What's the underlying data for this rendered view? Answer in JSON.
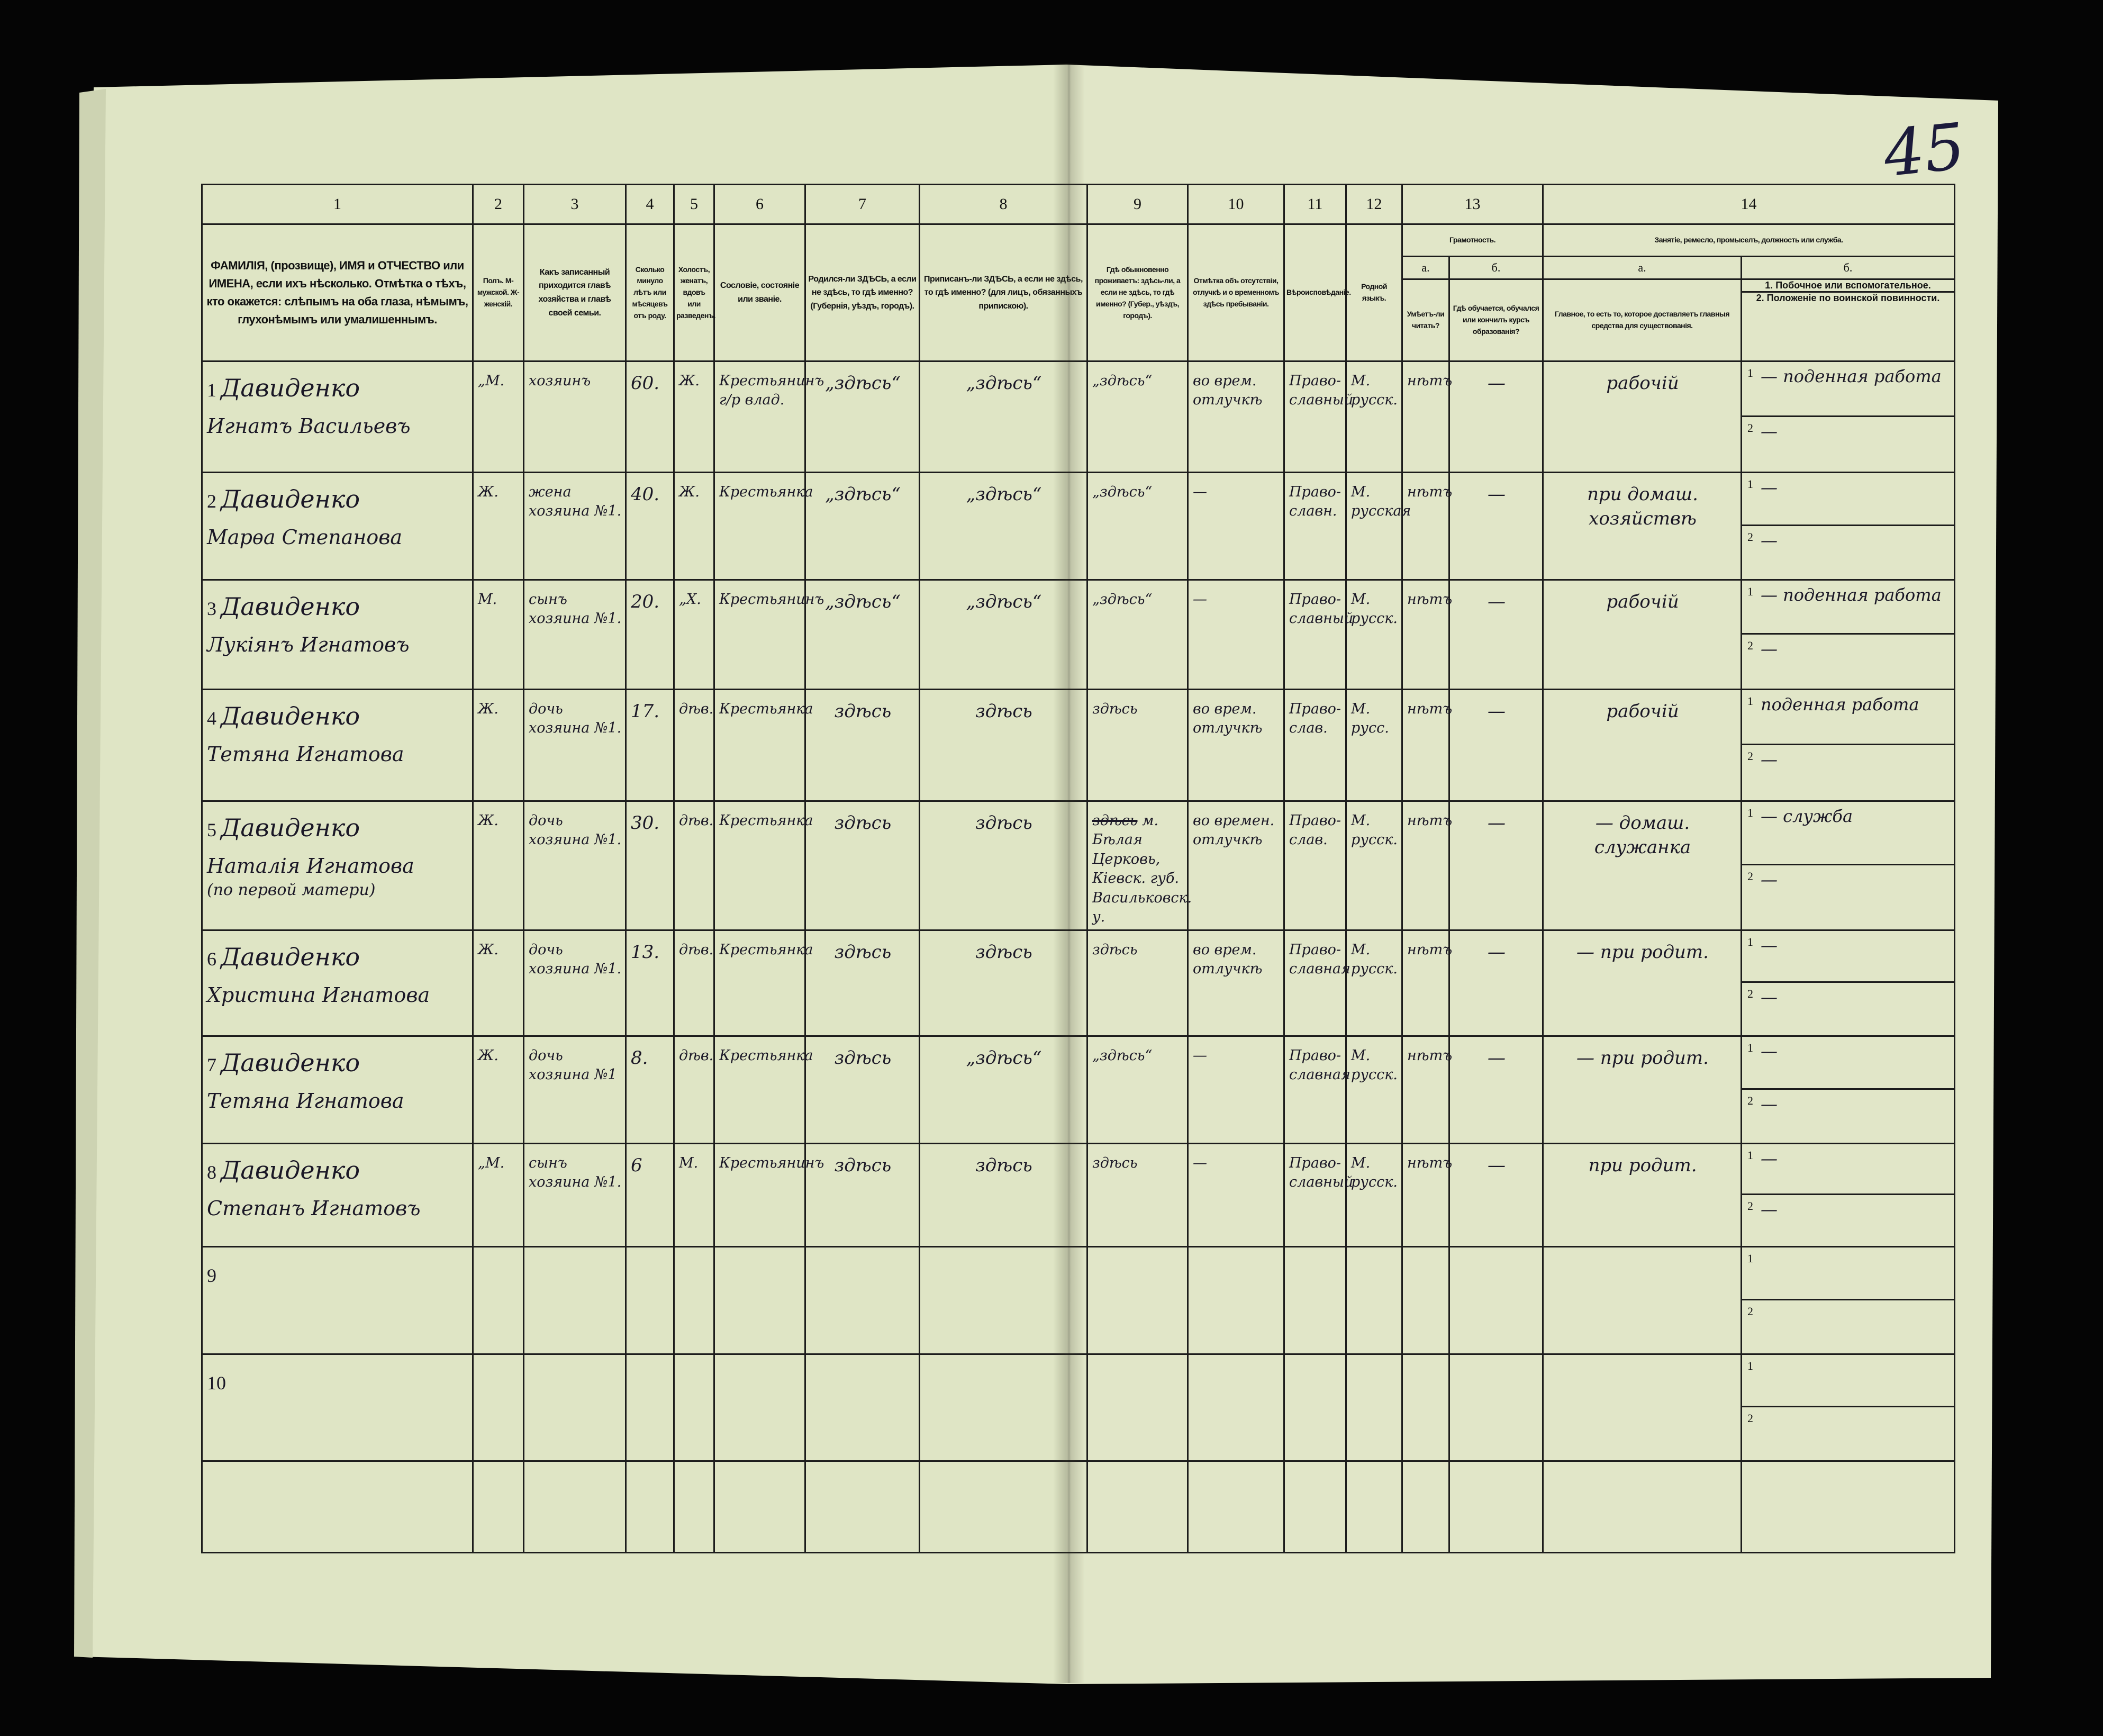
{
  "document": {
    "page_number": "45",
    "colors": {
      "paper": "#dfe5c5",
      "ink": "#1a1726",
      "print": "#111111",
      "background": "#050505"
    }
  },
  "columns": {
    "numbers": [
      "1",
      "2",
      "3",
      "4",
      "5",
      "6",
      "7",
      "8",
      "9",
      "10",
      "11",
      "12",
      "13",
      "14"
    ],
    "c1": "ФАМИЛІЯ, (прозвище), ИМЯ и ОТЧЕСТВО или ИМЕНА, если ихъ нѣсколько. Отмѣтка о тѣхъ, кто окажется: слѣпымъ на оба глаза, нѣмымъ, глухонѣмымъ или умалишеннымъ.",
    "c2": "Полъ. М-мужской. Ж-женскій.",
    "c3": "Какъ записанный приходится главѣ хозяйства и главѣ своей семьи.",
    "c4": "Сколько минуло лѣтъ или мѣсяцевъ отъ роду.",
    "c5": "Холостъ, женатъ, вдовъ или разведенъ.",
    "c6": "Сословіе, состояніе или званіе.",
    "c7": "Родился-ли ЗДѢСЬ, а если не здѣсь, то гдѣ именно? (Губернія, уѣздъ, городъ).",
    "c8": "Приписанъ-ли ЗДѢСЬ, а если не здѣсь, то гдѣ именно? (для лицъ, обязанныхъ припискою).",
    "c9": "Гдѣ обыкновенно проживаетъ: здѣсь-ли, а если не здѣсь, то гдѣ именно? (Губер., уѣздъ, городъ).",
    "c10": "Отмѣтка объ отсутствіи, отлучкѣ и о временномъ здѣсь пребываніи.",
    "c11": "Вѣроисповѣданіе.",
    "c12": "Родной языкъ.",
    "c13": "Грамотность.",
    "c13a_letter": "а.",
    "c13b_letter": "б.",
    "c13a": "Умѣетъ-ли читать?",
    "c13b": "Гдѣ обучается, обучался или кончилъ курсъ образованія?",
    "c14": "Занятіе, ремесло, промыселъ, должность или служба.",
    "c14a_letter": "а.",
    "c14b_letter": "б.",
    "c14a": "Главное, то есть то, которое доставляетъ главныя средства для существованія.",
    "c14b_1": "1. Побочное или вспомогательное.",
    "c14b_2": "2. Положеніе по воинской повинности."
  },
  "rows": [
    {
      "n": "1",
      "surname": "Давиденко",
      "given": "Игнатъ Васильевъ",
      "note": "",
      "sex": "„М.",
      "relation": "хозяинъ",
      "age": "60.",
      "marital": "Ж.",
      "estate": "Крестьянинъ г/р влад.",
      "born": "„здѣсь“",
      "registered": "„здѣсь“",
      "residence": "„здѣсь“",
      "residence_struck": "",
      "absence": "во врем. отлучкѣ",
      "religion": "Право-славный",
      "language": "М. русск.",
      "literate": "нѣтъ",
      "school": "—",
      "main_occupation": "рабочій",
      "side1": "— поденная работа",
      "side2": "—"
    },
    {
      "n": "2",
      "surname": "Давиденко",
      "given": "Марѳа Степанова",
      "note": "",
      "sex": "Ж.",
      "relation": "жена хозяина №1.",
      "age": "40.",
      "marital": "Ж.",
      "estate": "Крестьянка",
      "born": "„здѣсь“",
      "registered": "„здѣсь“",
      "residence": "„здѣсь“",
      "residence_struck": "",
      "absence": "—",
      "religion": "Право-славн.",
      "language": "М. русская",
      "literate": "нѣтъ",
      "school": "—",
      "main_occupation": "при домаш. хозяйствѣ",
      "side1": "—",
      "side2": "—"
    },
    {
      "n": "3",
      "surname": "Давиденко",
      "given": "Лукіянъ Игнатовъ",
      "note": "",
      "sex": "М.",
      "relation": "сынъ хозяина №1.",
      "age": "20.",
      "marital": "„Х.",
      "estate": "Крестьянинъ",
      "born": "„здѣсь“",
      "registered": "„здѣсь“",
      "residence": "„здѣсь“",
      "residence_struck": "",
      "absence": "—",
      "religion": "Право-славный",
      "language": "М. русск.",
      "literate": "нѣтъ",
      "school": "—",
      "main_occupation": "рабочій",
      "side1": "— поденная работа",
      "side2": "—"
    },
    {
      "n": "4",
      "surname": "Давиденко",
      "given": "Тетяна Игнатова",
      "note": "",
      "sex": "Ж.",
      "relation": "дочь хозяина №1.",
      "age": "17.",
      "marital": "дѣв.",
      "estate": "Крестьянка",
      "born": "здѣсь",
      "registered": "здѣсь",
      "residence": "здѣсь",
      "residence_struck": "",
      "absence": "во врем. отлучкѣ",
      "religion": "Право-слав.",
      "language": "М. русс.",
      "literate": "нѣтъ",
      "school": "—",
      "main_occupation": "рабочій",
      "side1": "поденная работа",
      "side2": "—"
    },
    {
      "n": "5",
      "surname": "Давиденко",
      "given": "Наталія Игнатова",
      "note": "(по первой матери)",
      "sex": "Ж.",
      "relation": "дочь хозяина №1.",
      "age": "30.",
      "marital": "дѣв.",
      "estate": "Крестьянка",
      "born": "здѣсь",
      "registered": "здѣсь",
      "residence": "м. Бѣлая Церковь, Кіевск. губ. Васильковск. у.",
      "residence_struck": "здѣсь",
      "absence": "во времен. отлучкѣ",
      "religion": "Право-слав.",
      "language": "М. русск.",
      "literate": "нѣтъ",
      "school": "—",
      "main_occupation": "— домаш. служанка",
      "side1": "— служба",
      "side2": "—"
    },
    {
      "n": "6",
      "surname": "Давиденко",
      "given": "Христина Игнатова",
      "note": "",
      "sex": "Ж.",
      "relation": "дочь хозяина №1.",
      "age": "13.",
      "marital": "дѣв.",
      "estate": "Крестьянка",
      "born": "здѣсь",
      "registered": "здѣсь",
      "residence": "здѣсь",
      "residence_struck": "",
      "absence": "во врем. отлучкѣ",
      "religion": "Право-славная",
      "language": "М. русск.",
      "literate": "нѣтъ",
      "school": "—",
      "main_occupation": "— при родит.",
      "side1": "—",
      "side2": "—"
    },
    {
      "n": "7",
      "surname": "Давиденко",
      "given": "Тетяна Игнатова",
      "note": "",
      "sex": "Ж.",
      "relation": "дочь хозяина №1",
      "age": "8.",
      "marital": "дѣв.",
      "estate": "Крестьянка",
      "born": "здѣсь",
      "registered": "„здѣсь“",
      "residence": "„здѣсь“",
      "residence_struck": "",
      "absence": "—",
      "religion": "Право-славная",
      "language": "М. русск.",
      "literate": "нѣтъ",
      "school": "—",
      "main_occupation": "— при родит.",
      "side1": "—",
      "side2": "—"
    },
    {
      "n": "8",
      "surname": "Давиденко",
      "given": "Степанъ Игнатовъ",
      "note": "",
      "sex": "„М.",
      "relation": "сынъ хозяина №1.",
      "age": "6",
      "marital": "М.",
      "estate": "Крестьянинъ",
      "born": "здѣсь",
      "registered": "здѣсь",
      "residence": "здѣсь",
      "residence_struck": "",
      "absence": "—",
      "religion": "Право-славный",
      "language": "М. русск.",
      "literate": "нѣтъ",
      "school": "—",
      "main_occupation": "при родит.",
      "side1": "—",
      "side2": "—"
    },
    {
      "n": "9",
      "surname": "",
      "given": "",
      "note": "",
      "sex": "",
      "relation": "",
      "age": "",
      "marital": "",
      "estate": "",
      "born": "",
      "registered": "",
      "residence": "",
      "residence_struck": "",
      "absence": "",
      "religion": "",
      "language": "",
      "literate": "",
      "school": "",
      "main_occupation": "",
      "side1": "",
      "side2": ""
    },
    {
      "n": "10",
      "surname": "",
      "given": "",
      "note": "",
      "sex": "",
      "relation": "",
      "age": "",
      "marital": "",
      "estate": "",
      "born": "",
      "registered": "",
      "residence": "",
      "residence_struck": "",
      "absence": "",
      "religion": "",
      "language": "",
      "literate": "",
      "school": "",
      "main_occupation": "",
      "side1": "",
      "side2": ""
    }
  ],
  "sub_labels": {
    "one": "1",
    "two": "2"
  }
}
